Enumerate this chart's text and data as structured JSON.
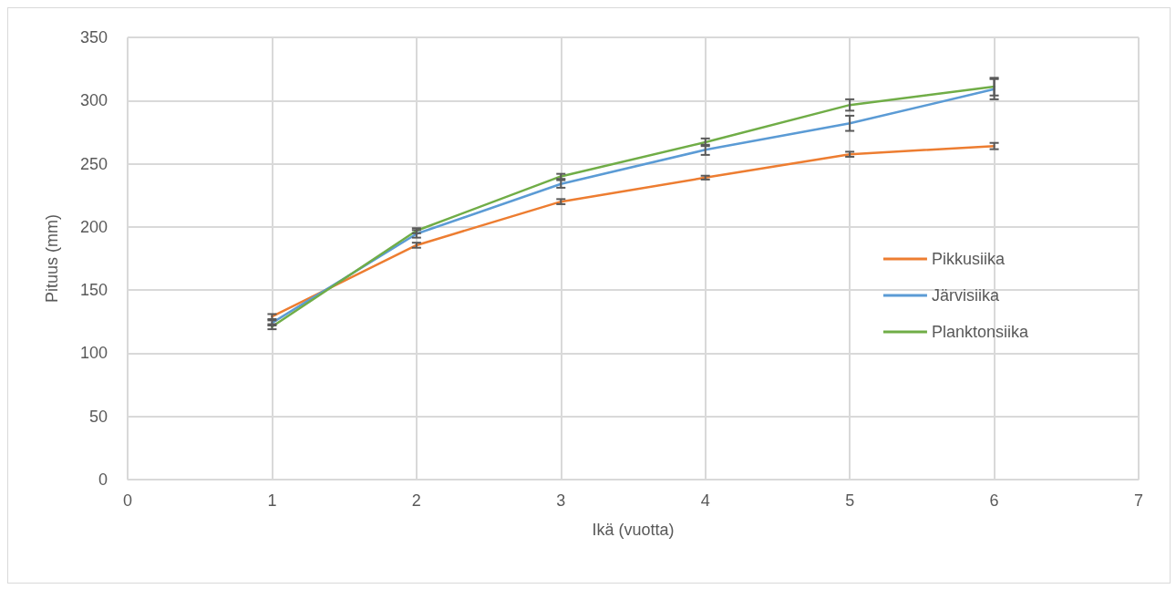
{
  "chart_data": {
    "type": "line",
    "xlabel": "Ikä (vuotta)",
    "ylabel": "Pituus (mm)",
    "x": [
      1,
      2,
      3,
      4,
      5,
      6
    ],
    "series": [
      {
        "name": "Pikkusiika",
        "color": "#ed7d31",
        "values": [
          129,
          185.5,
          220,
          239,
          257.5,
          264
        ],
        "errors": [
          2,
          2,
          2,
          1.5,
          2,
          2.5
        ]
      },
      {
        "name": "Järvisiika",
        "color": "#5b9bd5",
        "values": [
          124,
          194.5,
          234,
          261,
          282,
          309
        ],
        "errors": [
          2,
          3,
          3,
          4,
          6,
          8
        ]
      },
      {
        "name": "Planktonsiika",
        "color": "#70ad47",
        "values": [
          121,
          197,
          240,
          267,
          296.5,
          311
        ],
        "errors": [
          2,
          2,
          2,
          3,
          4.5,
          7
        ]
      }
    ],
    "xlim": [
      0,
      7
    ],
    "xticks": [
      0,
      1,
      2,
      3,
      4,
      5,
      6,
      7
    ],
    "ylim": [
      0,
      350
    ],
    "yticks": [
      0,
      50,
      100,
      150,
      200,
      250,
      300,
      350
    ],
    "grid": true,
    "legend": "center right",
    "marker": "none",
    "line_style": "solid"
  }
}
